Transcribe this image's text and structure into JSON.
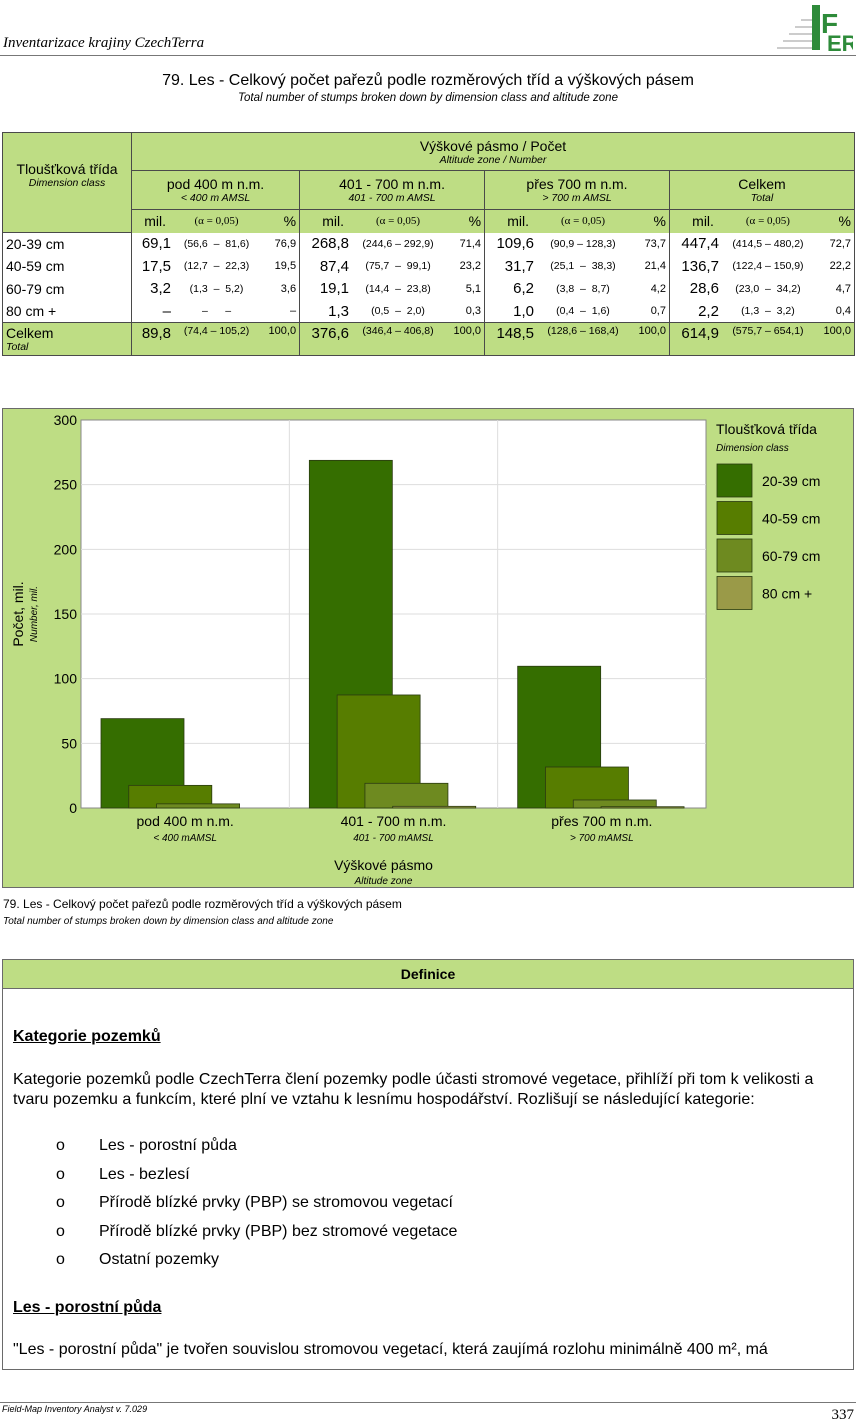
{
  "header": {
    "title": "Inventarizace krajiny CzechTerra",
    "logo_text": "IFER"
  },
  "title": {
    "cz": "79. Les - Celkový počet pařezů podle rozměrových tříd a výškových pásem",
    "en": "Total number of stumps broken down by dimension class and altitude zone"
  },
  "table": {
    "row_header": {
      "cz": "Tloušťková třída",
      "en": "Dimension class"
    },
    "group_header": {
      "cz": "Výškové pásmo / Počet",
      "en": "Altitude zone / Number"
    },
    "columns": [
      {
        "cz": "pod 400 m n.m.",
        "en": "< 400 m AMSL"
      },
      {
        "cz": "401 - 700 m n.m.",
        "en": "401 - 700 m AMSL"
      },
      {
        "cz": "přes 700 m n.m.",
        "en": "> 700 m AMSL"
      },
      {
        "cz": "Celkem",
        "en": "Total"
      }
    ],
    "sub": {
      "mil": "mil.",
      "alpha": "(α = 0,05)",
      "pct": "%"
    },
    "rows": [
      {
        "label": "20-39 cm",
        "cells": [
          [
            "69,1",
            "(56,6  –  81,6)",
            "76,9"
          ],
          [
            "268,8",
            "(244,6 – 292,9)",
            "71,4"
          ],
          [
            "109,6",
            "(90,9 – 128,3)",
            "73,7"
          ],
          [
            "447,4",
            "(414,5 – 480,2)",
            "72,7"
          ]
        ]
      },
      {
        "label": "40-59 cm",
        "cells": [
          [
            "17,5",
            "(12,7  –  22,3)",
            "19,5"
          ],
          [
            "87,4",
            "(75,7  –  99,1)",
            "23,2"
          ],
          [
            "31,7",
            "(25,1  –  38,3)",
            "21,4"
          ],
          [
            "136,7",
            "(122,4 – 150,9)",
            "22,2"
          ]
        ]
      },
      {
        "label": "60-79 cm",
        "cells": [
          [
            "3,2",
            "(1,3  –  5,2)",
            "3,6"
          ],
          [
            "19,1",
            "(14,4  –  23,8)",
            "5,1"
          ],
          [
            "6,2",
            "(3,8  –  8,7)",
            "4,2"
          ],
          [
            "28,6",
            "(23,0  –  34,2)",
            "4,7"
          ]
        ]
      },
      {
        "label": "80 cm +",
        "cells": [
          [
            "–",
            "–      –",
            "–"
          ],
          [
            "1,3",
            "(0,5  –  2,0)",
            "0,3"
          ],
          [
            "1,0",
            "(0,4  –  1,6)",
            "0,7"
          ],
          [
            "2,2",
            "(1,3  –  3,2)",
            "0,4"
          ]
        ]
      }
    ],
    "total": {
      "label": "Celkem",
      "label_en": "Total",
      "cells": [
        [
          "89,8",
          "(74,4 – 105,2)",
          "100,0"
        ],
        [
          "376,6",
          "(346,4 – 406,8)",
          "100,0"
        ],
        [
          "148,5",
          "(128,6 – 168,4)",
          "100,0"
        ],
        [
          "614,9",
          "(575,7 – 654,1)",
          "100,0"
        ]
      ]
    }
  },
  "chart_data": {
    "type": "bar",
    "categories": [
      "pod 400 m n.m.",
      "401 - 700 m n.m.",
      "přes 700 m n.m."
    ],
    "categories_en": [
      "< 400 mAMSL",
      "401 - 700 mAMSL",
      "> 700 mAMSL"
    ],
    "series": [
      {
        "name": "20-39 cm",
        "color": "#356e00",
        "values": [
          69.1,
          268.8,
          109.6
        ]
      },
      {
        "name": "40-59 cm",
        "color": "#577d00",
        "values": [
          17.5,
          87.4,
          31.7
        ]
      },
      {
        "name": "60-79 cm",
        "color": "#6e8a20",
        "values": [
          3.2,
          19.1,
          6.2
        ]
      },
      {
        "name": "80 cm +",
        "color": "#9a9a48",
        "values": [
          0,
          1.3,
          1.0
        ]
      }
    ],
    "ylim": [
      0,
      300
    ],
    "yticks": [
      0,
      50,
      100,
      150,
      200,
      250,
      300
    ],
    "ylabel": "Počet, mil.",
    "ylabel_en": "Number, mil.",
    "xlabel": "Výškové pásmo",
    "xlabel_en": "Altitude zone",
    "legend_title": "Tloušťková třída",
    "legend_title_en": "Dimension class",
    "legend": "right",
    "grid": true
  },
  "caption": {
    "cz": "79. Les - Celkový počet pařezů podle rozměrových tříd a výškových pásem",
    "en": "Total number of stumps broken down by dimension class and altitude zone"
  },
  "definitions": {
    "header": "Definice",
    "h1": "Kategorie pozemků",
    "p1": "Kategorie pozemků podle CzechTerra člení pozemky podle účasti stromové vegetace, přihlíží při tom k velikosti a tvaru pozemku a funkcím, které plní ve vztahu k lesnímu hospodářství. Rozlišují se následující kategorie:",
    "bullet": "o",
    "items": [
      "Les - porostní půda",
      "Les - bezlesí",
      "Přírodě blízké prvky (PBP) se stromovou vegetací",
      "Přírodě blízké prvky (PBP) bez stromové vegetace",
      "Ostatní pozemky"
    ],
    "h2": "Les - porostní půda",
    "p2": "\"Les - porostní půda\" je tvořen souvislou stromovou vegetací, která zaujímá rozlohu minimálně 400 m², má"
  },
  "footer": {
    "software": "Field-Map Inventory Analyst v. 7.029",
    "page": "337"
  }
}
